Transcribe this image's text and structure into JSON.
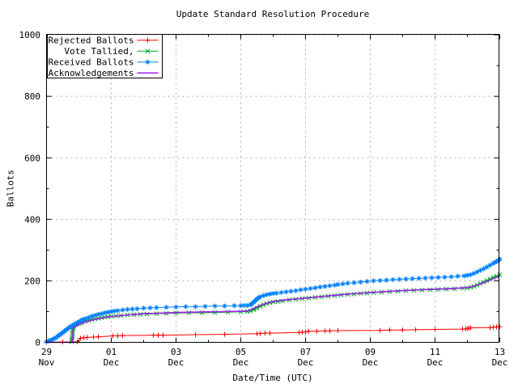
{
  "title": "Update Standard Resolution Procedure",
  "xlabel": "Date/Time (UTC)",
  "ylabel": "Ballots",
  "colors": {
    "background": "#ffffff",
    "axis": "#000000",
    "grid": "#b0b0b0",
    "rejected": "#ff0000",
    "tallied": "#00a820",
    "received": "#0080ff",
    "acknowledgements": "#a020f0"
  },
  "chart_data": {
    "type": "line",
    "title": "Update Standard Resolution Procedure",
    "xlabel": "Date/Time (UTC)",
    "ylabel": "Ballots",
    "ylim": [
      0,
      1000
    ],
    "y_major_ticks": [
      0,
      200,
      400,
      600,
      800,
      1000
    ],
    "y_minor_ticks": [
      100,
      300,
      500,
      700,
      900
    ],
    "x_axis_unit": "days from 29 Nov 00:00 UTC",
    "x_ticks": [
      {
        "d": 0,
        "line1": "29",
        "line2": "Nov"
      },
      {
        "d": 2,
        "line1": "01",
        "line2": "Dec"
      },
      {
        "d": 4,
        "line1": "03",
        "line2": "Dec"
      },
      {
        "d": 6,
        "line1": "05",
        "line2": "Dec"
      },
      {
        "d": 8,
        "line1": "07",
        "line2": "Dec"
      },
      {
        "d": 10,
        "line1": "09",
        "line2": "Dec"
      },
      {
        "d": 12,
        "line1": "11",
        "line2": "Dec"
      },
      {
        "d": 14,
        "line1": "13",
        "line2": "Dec"
      }
    ],
    "x_minor_tick_days": [
      1,
      3,
      5,
      7,
      9,
      11,
      13
    ],
    "grid": true,
    "legend_position": "top-left",
    "series": [
      {
        "name": "Rejected Ballots",
        "color": "#ff0000",
        "marker": "plus",
        "points": [
          [
            0,
            0
          ],
          [
            0.5,
            1
          ],
          [
            0.95,
            2
          ],
          [
            1.05,
            13
          ],
          [
            1.15,
            15
          ],
          [
            1.25,
            16
          ],
          [
            1.45,
            17
          ],
          [
            1.6,
            18
          ],
          [
            2.05,
            21
          ],
          [
            2.2,
            21
          ],
          [
            2.35,
            22
          ],
          [
            3.3,
            23
          ],
          [
            3.45,
            23
          ],
          [
            3.6,
            23
          ],
          [
            4.6,
            25
          ],
          [
            5.5,
            26
          ],
          [
            6.5,
            28
          ],
          [
            6.6,
            29
          ],
          [
            6.75,
            30
          ],
          [
            6.9,
            30
          ],
          [
            7.8,
            32
          ],
          [
            7.9,
            33
          ],
          [
            8.0,
            34
          ],
          [
            8.1,
            36
          ],
          [
            8.35,
            36
          ],
          [
            8.6,
            37
          ],
          [
            8.75,
            37
          ],
          [
            9.0,
            38
          ],
          [
            10.3,
            39
          ],
          [
            10.6,
            40
          ],
          [
            11.0,
            40
          ],
          [
            11.4,
            41
          ],
          [
            12.0,
            42
          ],
          [
            12.85,
            43
          ],
          [
            12.95,
            44
          ],
          [
            13.0,
            45
          ],
          [
            13.05,
            46
          ],
          [
            13.1,
            47
          ],
          [
            13.7,
            48
          ],
          [
            13.8,
            49
          ],
          [
            13.9,
            50
          ],
          [
            14.0,
            51
          ]
        ]
      },
      {
        "name": "Vote Tallied,",
        "color": "#00a820",
        "marker": "cross",
        "points": [
          [
            0.78,
            2
          ],
          [
            0.78,
            8
          ],
          [
            0.79,
            15
          ],
          [
            0.8,
            22
          ],
          [
            0.8,
            30
          ],
          [
            0.81,
            38
          ],
          [
            0.82,
            45
          ],
          [
            0.83,
            50
          ],
          [
            0.85,
            54
          ],
          [
            0.9,
            57
          ],
          [
            0.95,
            59
          ],
          [
            1.0,
            61
          ],
          [
            1.05,
            63
          ],
          [
            1.1,
            65
          ],
          [
            1.2,
            68
          ],
          [
            1.3,
            71
          ],
          [
            1.4,
            74
          ],
          [
            1.5,
            76
          ],
          [
            1.6,
            78
          ],
          [
            1.7,
            80
          ],
          [
            1.8,
            82
          ],
          [
            1.9,
            83
          ],
          [
            2.0,
            85
          ],
          [
            2.15,
            86
          ],
          [
            2.3,
            87
          ],
          [
            2.5,
            89
          ],
          [
            2.7,
            90
          ],
          [
            2.9,
            91
          ],
          [
            3.1,
            92
          ],
          [
            3.4,
            93
          ],
          [
            3.7,
            94
          ],
          [
            4.0,
            95
          ],
          [
            4.4,
            96
          ],
          [
            4.8,
            96
          ],
          [
            5.2,
            97
          ],
          [
            5.6,
            98
          ],
          [
            6.0,
            99
          ],
          [
            6.2,
            100
          ],
          [
            6.3,
            102
          ],
          [
            6.4,
            106
          ],
          [
            6.5,
            111
          ],
          [
            6.6,
            117
          ],
          [
            6.7,
            122
          ],
          [
            6.8,
            126
          ],
          [
            6.9,
            129
          ],
          [
            7.0,
            131
          ],
          [
            7.15,
            133
          ],
          [
            7.3,
            135
          ],
          [
            7.5,
            138
          ],
          [
            7.7,
            140
          ],
          [
            7.9,
            142
          ],
          [
            8.1,
            144
          ],
          [
            8.3,
            146
          ],
          [
            8.5,
            148
          ],
          [
            8.7,
            150
          ],
          [
            8.9,
            152
          ],
          [
            9.1,
            154
          ],
          [
            9.3,
            156
          ],
          [
            9.5,
            157
          ],
          [
            9.7,
            159
          ],
          [
            9.9,
            160
          ],
          [
            10.1,
            162
          ],
          [
            10.35,
            163
          ],
          [
            10.6,
            165
          ],
          [
            10.85,
            166
          ],
          [
            11.1,
            168
          ],
          [
            11.35,
            169
          ],
          [
            11.6,
            170
          ],
          [
            11.85,
            171
          ],
          [
            12.1,
            172
          ],
          [
            12.35,
            173
          ],
          [
            12.6,
            174
          ],
          [
            12.85,
            176
          ],
          [
            13.0,
            177
          ],
          [
            13.1,
            179
          ],
          [
            13.2,
            182
          ],
          [
            13.3,
            186
          ],
          [
            13.4,
            191
          ],
          [
            13.5,
            196
          ],
          [
            13.6,
            201
          ],
          [
            13.7,
            206
          ],
          [
            13.8,
            211
          ],
          [
            13.9,
            215
          ],
          [
            14.0,
            220
          ]
        ]
      },
      {
        "name": "Received Ballots",
        "color": "#0080ff",
        "marker": "star",
        "points": [
          [
            0,
            2
          ],
          [
            0.05,
            4
          ],
          [
            0.1,
            6
          ],
          [
            0.15,
            8
          ],
          [
            0.2,
            10
          ],
          [
            0.25,
            13
          ],
          [
            0.3,
            16
          ],
          [
            0.35,
            20
          ],
          [
            0.4,
            24
          ],
          [
            0.45,
            28
          ],
          [
            0.5,
            32
          ],
          [
            0.55,
            36
          ],
          [
            0.6,
            40
          ],
          [
            0.65,
            44
          ],
          [
            0.7,
            48
          ],
          [
            0.75,
            52
          ],
          [
            0.8,
            55
          ],
          [
            0.85,
            58
          ],
          [
            0.9,
            61
          ],
          [
            0.95,
            64
          ],
          [
            1.0,
            67
          ],
          [
            1.05,
            70
          ],
          [
            1.1,
            73
          ],
          [
            1.15,
            75
          ],
          [
            1.2,
            77
          ],
          [
            1.3,
            81
          ],
          [
            1.4,
            85
          ],
          [
            1.5,
            88
          ],
          [
            1.6,
            91
          ],
          [
            1.7,
            93
          ],
          [
            1.8,
            96
          ],
          [
            1.9,
            98
          ],
          [
            2.0,
            100
          ],
          [
            2.1,
            102
          ],
          [
            2.2,
            103
          ],
          [
            2.35,
            105
          ],
          [
            2.5,
            107
          ],
          [
            2.65,
            108
          ],
          [
            2.8,
            109
          ],
          [
            3.0,
            111
          ],
          [
            3.2,
            112
          ],
          [
            3.4,
            113
          ],
          [
            3.7,
            114
          ],
          [
            4.0,
            115
          ],
          [
            4.3,
            116
          ],
          [
            4.6,
            116
          ],
          [
            4.9,
            117
          ],
          [
            5.2,
            118
          ],
          [
            5.5,
            118
          ],
          [
            5.8,
            119
          ],
          [
            6.0,
            119
          ],
          [
            6.1,
            120
          ],
          [
            6.2,
            120
          ],
          [
            6.3,
            122
          ],
          [
            6.35,
            126
          ],
          [
            6.4,
            131
          ],
          [
            6.45,
            136
          ],
          [
            6.5,
            141
          ],
          [
            6.55,
            145
          ],
          [
            6.6,
            148
          ],
          [
            6.7,
            152
          ],
          [
            6.8,
            155
          ],
          [
            6.9,
            157
          ],
          [
            7.0,
            159
          ],
          [
            7.1,
            160
          ],
          [
            7.25,
            162
          ],
          [
            7.4,
            164
          ],
          [
            7.55,
            166
          ],
          [
            7.7,
            168
          ],
          [
            7.85,
            171
          ],
          [
            8.0,
            173
          ],
          [
            8.15,
            175
          ],
          [
            8.3,
            177
          ],
          [
            8.45,
            180
          ],
          [
            8.6,
            182
          ],
          [
            8.75,
            184
          ],
          [
            8.9,
            186
          ],
          [
            9.0,
            188
          ],
          [
            9.15,
            190
          ],
          [
            9.3,
            192
          ],
          [
            9.5,
            194
          ],
          [
            9.7,
            196
          ],
          [
            9.9,
            198
          ],
          [
            10.1,
            200
          ],
          [
            10.3,
            201
          ],
          [
            10.5,
            202
          ],
          [
            10.7,
            204
          ],
          [
            10.9,
            205
          ],
          [
            11.1,
            206
          ],
          [
            11.3,
            207
          ],
          [
            11.5,
            208
          ],
          [
            11.7,
            209
          ],
          [
            11.9,
            210
          ],
          [
            12.1,
            211
          ],
          [
            12.3,
            212
          ],
          [
            12.5,
            213
          ],
          [
            12.7,
            215
          ],
          [
            12.9,
            216
          ],
          [
            13.0,
            218
          ],
          [
            13.1,
            220
          ],
          [
            13.2,
            224
          ],
          [
            13.3,
            229
          ],
          [
            13.4,
            234
          ],
          [
            13.5,
            239
          ],
          [
            13.6,
            245
          ],
          [
            13.7,
            251
          ],
          [
            13.8,
            257
          ],
          [
            13.85,
            260
          ],
          [
            13.9,
            263
          ],
          [
            13.95,
            266
          ],
          [
            14.0,
            270
          ]
        ]
      },
      {
        "name": "Acknowledgements",
        "color": "#a020f0",
        "marker": "none",
        "points": [
          [
            0,
            0
          ],
          [
            0.8,
            0
          ],
          [
            0.82,
            46
          ],
          [
            0.9,
            52
          ],
          [
            1.0,
            58
          ],
          [
            1.2,
            66
          ],
          [
            1.4,
            72
          ],
          [
            1.6,
            77
          ],
          [
            1.8,
            81
          ],
          [
            2.0,
            84
          ],
          [
            2.3,
            87
          ],
          [
            2.6,
            90
          ],
          [
            3.0,
            93
          ],
          [
            3.5,
            95
          ],
          [
            4.0,
            97
          ],
          [
            4.5,
            98
          ],
          [
            5.0,
            99
          ],
          [
            5.5,
            100
          ],
          [
            6.0,
            101
          ],
          [
            6.2,
            102
          ],
          [
            6.35,
            108
          ],
          [
            6.5,
            116
          ],
          [
            6.7,
            124
          ],
          [
            6.9,
            130
          ],
          [
            7.0,
            133
          ],
          [
            7.3,
            137
          ],
          [
            7.6,
            140
          ],
          [
            8.0,
            144
          ],
          [
            8.4,
            148
          ],
          [
            8.8,
            152
          ],
          [
            9.2,
            156
          ],
          [
            9.6,
            159
          ],
          [
            10.0,
            162
          ],
          [
            10.5,
            165
          ],
          [
            11.0,
            168
          ],
          [
            11.5,
            171
          ],
          [
            12.0,
            173
          ],
          [
            12.5,
            175
          ],
          [
            13.0,
            178
          ],
          [
            13.2,
            183
          ],
          [
            13.4,
            190
          ],
          [
            13.6,
            198
          ],
          [
            13.8,
            207
          ],
          [
            14.0,
            216
          ]
        ]
      }
    ]
  }
}
